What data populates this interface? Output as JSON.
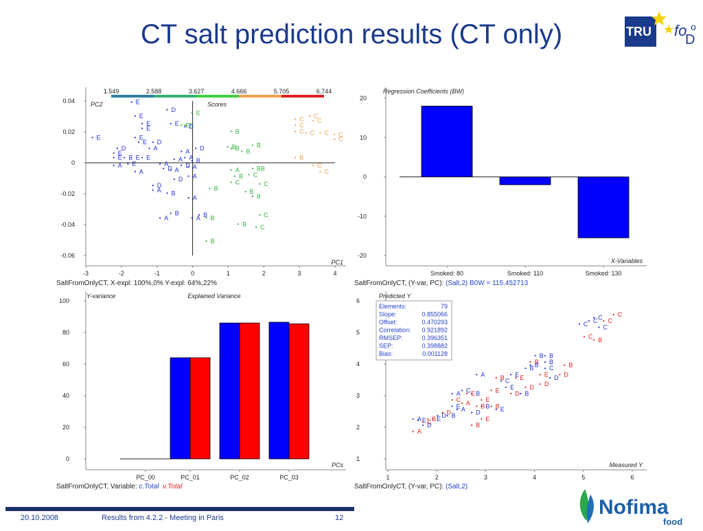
{
  "slide": {
    "title": "CT salt prediction results (CT only)",
    "footer_date": "20.10.2008",
    "footer_text": "Results from 4.2.2 - Meeting in Paris",
    "page_number": "12",
    "logo_truefood_text": "TRUEfooD",
    "logo_nofima_text": "Nofima",
    "logo_nofima_sub": "food"
  },
  "colors": {
    "title": "#1a3a8c",
    "bar_blue": "#0000ff",
    "bar_red": "#ff0000",
    "scores_palette": [
      "#1f2fd0",
      "#2f7fa0",
      "#35b070",
      "#3fd03f",
      "#f0a050",
      "#e02020"
    ]
  },
  "chart_data": [
    {
      "id": "scores",
      "type": "scatter",
      "title": "Scores",
      "xlabel": "PC1",
      "ylabel": "PC2",
      "xlim": [
        -3,
        4
      ],
      "ylim": [
        -0.06,
        0.04
      ],
      "xticks": [
        "-3",
        "-2",
        "-1",
        "0",
        "1",
        "2",
        "3",
        "4"
      ],
      "yticks": [
        "0.04",
        "0.02",
        "0",
        "-0.02",
        "-0.04",
        "-0.06"
      ],
      "colorbar_ticks": [
        "1.549",
        "2.588",
        "3.627",
        "4.666",
        "5.705",
        "6.744"
      ],
      "caption": "SaltFromOnlyCT, X-expl: 100%,0%  Y-expl: 64%,22%",
      "points": [
        {
          "x": -1.6,
          "y": 0.038,
          "label": "E"
        },
        {
          "x": -0.6,
          "y": 0.033,
          "label": "D"
        },
        {
          "x": -1.5,
          "y": 0.029,
          "label": "E"
        },
        {
          "x": 0.1,
          "y": 0.031,
          "label": "E"
        },
        {
          "x": -1.3,
          "y": 0.024,
          "label": "E"
        },
        {
          "x": -1.3,
          "y": 0.021,
          "label": "E"
        },
        {
          "x": -0.5,
          "y": 0.024,
          "label": "E"
        },
        {
          "x": -0.2,
          "y": 0.023,
          "label": "E"
        },
        {
          "x": -0.1,
          "y": 0.023,
          "label": "E"
        },
        {
          "x": -0.1,
          "y": 0.022,
          "label": "D"
        },
        {
          "x": -2.7,
          "y": 0.015,
          "label": "E"
        },
        {
          "x": -1.5,
          "y": 0.015,
          "label": "E"
        },
        {
          "x": -1.4,
          "y": 0.012,
          "label": "E"
        },
        {
          "x": -1.0,
          "y": 0.012,
          "label": "D"
        },
        {
          "x": -2.0,
          "y": 0.008,
          "label": "D"
        },
        {
          "x": -1.1,
          "y": 0.008,
          "label": "A"
        },
        {
          "x": -2.1,
          "y": 0.005,
          "label": "E"
        },
        {
          "x": -0.2,
          "y": 0.006,
          "label": "A"
        },
        {
          "x": 0.2,
          "y": 0.008,
          "label": "D"
        },
        {
          "x": -2.1,
          "y": 0.002,
          "label": "E"
        },
        {
          "x": -1.8,
          "y": 0.002,
          "label": "E"
        },
        {
          "x": -1.6,
          "y": 0.002,
          "label": "E"
        },
        {
          "x": -1.3,
          "y": 0.002,
          "label": "E"
        },
        {
          "x": -0.4,
          "y": 0.001,
          "label": "A"
        },
        {
          "x": -0.1,
          "y": 0.002,
          "label": "A"
        },
        {
          "x": -2.1,
          "y": -0.003,
          "label": "A"
        },
        {
          "x": -1.7,
          "y": -0.002,
          "label": "E"
        },
        {
          "x": -0.8,
          "y": -0.002,
          "label": "A"
        },
        {
          "x": -0.7,
          "y": -0.005,
          "label": "D"
        },
        {
          "x": -0.5,
          "y": -0.006,
          "label": "A"
        },
        {
          "x": -0.2,
          "y": -0.003,
          "label": "D"
        },
        {
          "x": 0.0,
          "y": -0.004,
          "label": "A"
        },
        {
          "x": 0.1,
          "y": 0.0,
          "label": "B"
        },
        {
          "x": -1.5,
          "y": -0.007,
          "label": "A"
        },
        {
          "x": -0.4,
          "y": -0.012,
          "label": "D"
        },
        {
          "x": 0.0,
          "y": -0.01,
          "label": "A"
        },
        {
          "x": -1.0,
          "y": -0.016,
          "label": "D"
        },
        {
          "x": -1.0,
          "y": -0.019,
          "label": "A"
        },
        {
          "x": -0.6,
          "y": -0.021,
          "label": "B"
        },
        {
          "x": 0.0,
          "y": -0.024,
          "label": "A"
        },
        {
          "x": -0.5,
          "y": -0.034,
          "label": "B"
        },
        {
          "x": -0.8,
          "y": -0.037,
          "label": "A"
        },
        {
          "x": 0.3,
          "y": -0.035,
          "label": "B"
        },
        {
          "x": 0.1,
          "y": -0.037,
          "label": "A"
        },
        {
          "x": 0.5,
          "y": -0.037,
          "label": "B"
        },
        {
          "x": 0.5,
          "y": -0.052,
          "label": "B"
        },
        {
          "x": 1.2,
          "y": 0.019,
          "label": "B"
        },
        {
          "x": 1.8,
          "y": 0.01,
          "label": "B"
        },
        {
          "x": 1.1,
          "y": 0.009,
          "label": "B"
        },
        {
          "x": 1.2,
          "y": 0.008,
          "label": "B"
        },
        {
          "x": 1.5,
          "y": 0.006,
          "label": "B"
        },
        {
          "x": 1.8,
          "y": -0.005,
          "label": "BB"
        },
        {
          "x": 1.2,
          "y": -0.006,
          "label": "A"
        },
        {
          "x": 1.3,
          "y": -0.01,
          "label": "B"
        },
        {
          "x": 1.7,
          "y": -0.009,
          "label": "C"
        },
        {
          "x": 1.2,
          "y": -0.014,
          "label": "C"
        },
        {
          "x": 2.0,
          "y": -0.015,
          "label": "C"
        },
        {
          "x": 0.6,
          "y": -0.018,
          "label": "B"
        },
        {
          "x": 1.6,
          "y": -0.02,
          "label": "B"
        },
        {
          "x": 1.8,
          "y": -0.023,
          "label": "B"
        },
        {
          "x": 2.0,
          "y": -0.035,
          "label": "C"
        },
        {
          "x": 1.4,
          "y": -0.041,
          "label": "B"
        },
        {
          "x": 1.9,
          "y": -0.043,
          "label": "C"
        },
        {
          "x": 3.4,
          "y": 0.029,
          "label": "C"
        },
        {
          "x": 3.0,
          "y": 0.027,
          "label": "C"
        },
        {
          "x": 3.5,
          "y": 0.026,
          "label": "C"
        },
        {
          "x": 3.0,
          "y": 0.023,
          "label": "C"
        },
        {
          "x": 3.3,
          "y": 0.018,
          "label": "C"
        },
        {
          "x": 3.7,
          "y": 0.018,
          "label": "C"
        },
        {
          "x": 4.1,
          "y": 0.017,
          "label": "C"
        },
        {
          "x": 4.1,
          "y": 0.014,
          "label": "C"
        },
        {
          "x": 3.0,
          "y": 0.019,
          "label": "C"
        },
        {
          "x": 3.0,
          "y": 0.002,
          "label": "B"
        },
        {
          "x": 3.5,
          "y": -0.003,
          "label": "C"
        },
        {
          "x": 3.7,
          "y": -0.007,
          "label": "C"
        }
      ]
    },
    {
      "id": "regression",
      "type": "bar",
      "title": "Regression Coefficients (BW)",
      "xlabel": "X-Variables",
      "ylim": [
        -20,
        20
      ],
      "yticks": [
        "20",
        "10",
        "0",
        "-10",
        "-20"
      ],
      "categories": [
        "Smoked: 80",
        "Smoked: 110",
        "Smoked: 130"
      ],
      "values": [
        18,
        -2,
        -15.5
      ],
      "caption_prefix": "SaltFromOnlyCT, (Y-var, PC): ",
      "caption_value": "(Salt,2) B0W = 115.452713"
    },
    {
      "id": "variance",
      "type": "bar",
      "title": "Explained  Variance",
      "ylabel": "Y-variance",
      "xlabel": "PCs",
      "ylim": [
        0,
        100
      ],
      "yticks": [
        "100",
        "80",
        "60",
        "40",
        "20",
        "0"
      ],
      "categories": [
        "PC_00",
        "PC_01",
        "PC_02",
        "PC_03"
      ],
      "series": [
        {
          "name": "c.Total",
          "values": [
            0,
            64,
            86,
            86.5
          ]
        },
        {
          "name": "v.Total",
          "values": [
            0,
            64,
            86,
            85.5
          ]
        }
      ],
      "caption_prefix": "SaltFromOnlyCT, Variable: ",
      "caption_series1": "c.Total",
      "caption_series2": "v.Total"
    },
    {
      "id": "predicted",
      "type": "scatter",
      "title": "Predicted Y",
      "xlabel": "Measured Y",
      "xlim": [
        1,
        6
      ],
      "ylim": [
        1,
        6
      ],
      "xticks": [
        "1",
        "2",
        "3",
        "4",
        "5",
        "6"
      ],
      "yticks": [
        "6",
        "5",
        "4",
        "3",
        "2",
        "1"
      ],
      "stats": [
        [
          "Elements:",
          "79"
        ],
        [
          "Slope:",
          "0.855066"
        ],
        [
          "Offset:",
          "0.470293"
        ],
        [
          "Correlation:",
          "0.921892"
        ],
        [
          "RMSEP:",
          "0.396351"
        ],
        [
          "SEP:",
          "0.398882"
        ],
        [
          "Bias:",
          "0.001128"
        ]
      ],
      "caption_prefix": "SaltFromOnlyCT, (Y-var, PC): ",
      "caption_value": "(Salt,2)",
      "points_blue": [
        {
          "x": 1.6,
          "y": 2.2,
          "label": "A"
        },
        {
          "x": 1.7,
          "y": 2.15,
          "label": "E"
        },
        {
          "x": 1.8,
          "y": 2.0,
          "label": "D"
        },
        {
          "x": 2.0,
          "y": 2.2,
          "label": "E"
        },
        {
          "x": 2.1,
          "y": 2.3,
          "label": "D"
        },
        {
          "x": 2.3,
          "y": 2.3,
          "label": "B"
        },
        {
          "x": 2.4,
          "y": 2.6,
          "label": "E"
        },
        {
          "x": 2.5,
          "y": 2.5,
          "label": "A"
        },
        {
          "x": 2.4,
          "y": 3.0,
          "label": "A"
        },
        {
          "x": 2.8,
          "y": 2.4,
          "label": "D"
        },
        {
          "x": 2.6,
          "y": 3.1,
          "label": "C"
        },
        {
          "x": 2.8,
          "y": 3.0,
          "label": "B"
        },
        {
          "x": 2.9,
          "y": 3.6,
          "label": "A"
        },
        {
          "x": 3.0,
          "y": 2.6,
          "label": "B"
        },
        {
          "x": 3.3,
          "y": 2.5,
          "label": "E"
        },
        {
          "x": 3.4,
          "y": 3.4,
          "label": "C"
        },
        {
          "x": 3.5,
          "y": 3.2,
          "label": "E"
        },
        {
          "x": 3.6,
          "y": 3.6,
          "label": "E"
        },
        {
          "x": 3.8,
          "y": 3.0,
          "label": "B"
        },
        {
          "x": 3.9,
          "y": 3.8,
          "label": "B"
        },
        {
          "x": 4.0,
          "y": 3.9,
          "label": "B"
        },
        {
          "x": 4.3,
          "y": 3.8,
          "label": "C"
        },
        {
          "x": 4.3,
          "y": 4.0,
          "label": "B"
        },
        {
          "x": 4.4,
          "y": 3.5,
          "label": "D"
        },
        {
          "x": 4.1,
          "y": 4.2,
          "label": "B"
        },
        {
          "x": 4.3,
          "y": 4.2,
          "label": "B"
        },
        {
          "x": 5.0,
          "y": 5.2,
          "label": "C"
        },
        {
          "x": 5.3,
          "y": 5.4,
          "label": "C"
        },
        {
          "x": 5.4,
          "y": 5.1,
          "label": "C"
        },
        {
          "x": 5.2,
          "y": 5.3,
          "label": "C"
        }
      ],
      "points_red": [
        {
          "x": 1.6,
          "y": 1.8,
          "label": "A"
        },
        {
          "x": 1.8,
          "y": 2.1,
          "label": "C"
        },
        {
          "x": 1.9,
          "y": 2.2,
          "label": "B"
        },
        {
          "x": 2.2,
          "y": 2.4,
          "label": "D"
        },
        {
          "x": 2.4,
          "y": 2.8,
          "label": "C"
        },
        {
          "x": 2.6,
          "y": 2.7,
          "label": "A"
        },
        {
          "x": 2.7,
          "y": 3.0,
          "label": "E"
        },
        {
          "x": 2.8,
          "y": 2.0,
          "label": "B"
        },
        {
          "x": 2.9,
          "y": 2.6,
          "label": "B"
        },
        {
          "x": 3.0,
          "y": 2.8,
          "label": "E"
        },
        {
          "x": 3.0,
          "y": 2.2,
          "label": "E"
        },
        {
          "x": 3.2,
          "y": 3.1,
          "label": "E"
        },
        {
          "x": 3.2,
          "y": 2.6,
          "label": "B"
        },
        {
          "x": 3.3,
          "y": 3.5,
          "label": "B"
        },
        {
          "x": 3.6,
          "y": 3.0,
          "label": "D"
        },
        {
          "x": 3.7,
          "y": 3.5,
          "label": "E"
        },
        {
          "x": 3.9,
          "y": 3.2,
          "label": "D"
        },
        {
          "x": 4.2,
          "y": 3.3,
          "label": "D"
        },
        {
          "x": 4.0,
          "y": 4.0,
          "label": "B"
        },
        {
          "x": 4.2,
          "y": 3.6,
          "label": "E"
        },
        {
          "x": 4.6,
          "y": 3.6,
          "label": "D"
        },
        {
          "x": 4.7,
          "y": 3.9,
          "label": "B"
        },
        {
          "x": 5.1,
          "y": 4.8,
          "label": "C"
        },
        {
          "x": 5.3,
          "y": 4.7,
          "label": "B"
        },
        {
          "x": 5.5,
          "y": 5.3,
          "label": "C"
        },
        {
          "x": 5.7,
          "y": 5.5,
          "label": "C"
        }
      ]
    }
  ]
}
